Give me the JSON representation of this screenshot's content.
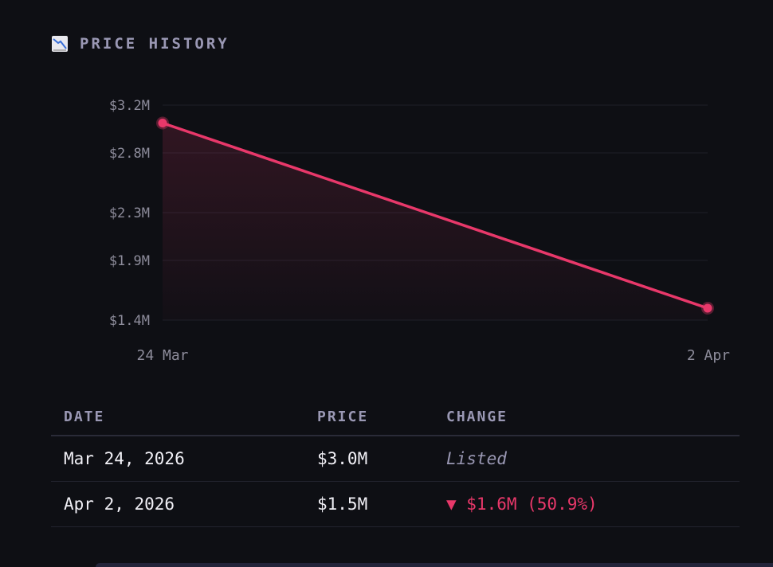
{
  "header": {
    "icon": "chart-decreasing-icon",
    "title": "PRICE HISTORY"
  },
  "colors": {
    "background": "#0e0f14",
    "line": "#e8386a",
    "grid": "#1e1f29",
    "muted": "#9a98b4"
  },
  "chart_data": {
    "type": "line",
    "title": "PRICE HISTORY",
    "x": [
      "24 Mar",
      "2 Apr"
    ],
    "series": [
      {
        "name": "Price",
        "values": [
          3.05,
          1.5
        ]
      }
    ],
    "y_ticks": [
      "$3.2M",
      "$2.8M",
      "$2.3M",
      "$1.9M",
      "$1.4M"
    ],
    "y_tick_values": [
      3.2,
      2.8,
      2.3,
      1.9,
      1.4
    ],
    "ylim": [
      1.4,
      3.2
    ],
    "units": "$M",
    "grid": true,
    "area_fill": true
  },
  "table": {
    "headers": {
      "date": "DATE",
      "price": "PRICE",
      "change": "CHANGE"
    },
    "rows": [
      {
        "date": "Mar 24, 2026",
        "price": "$3.0M",
        "change": "Listed"
      },
      {
        "date": "Apr 2, 2026",
        "price": "$1.5M",
        "change": "▼ $1.6M (50.9%)"
      }
    ]
  }
}
